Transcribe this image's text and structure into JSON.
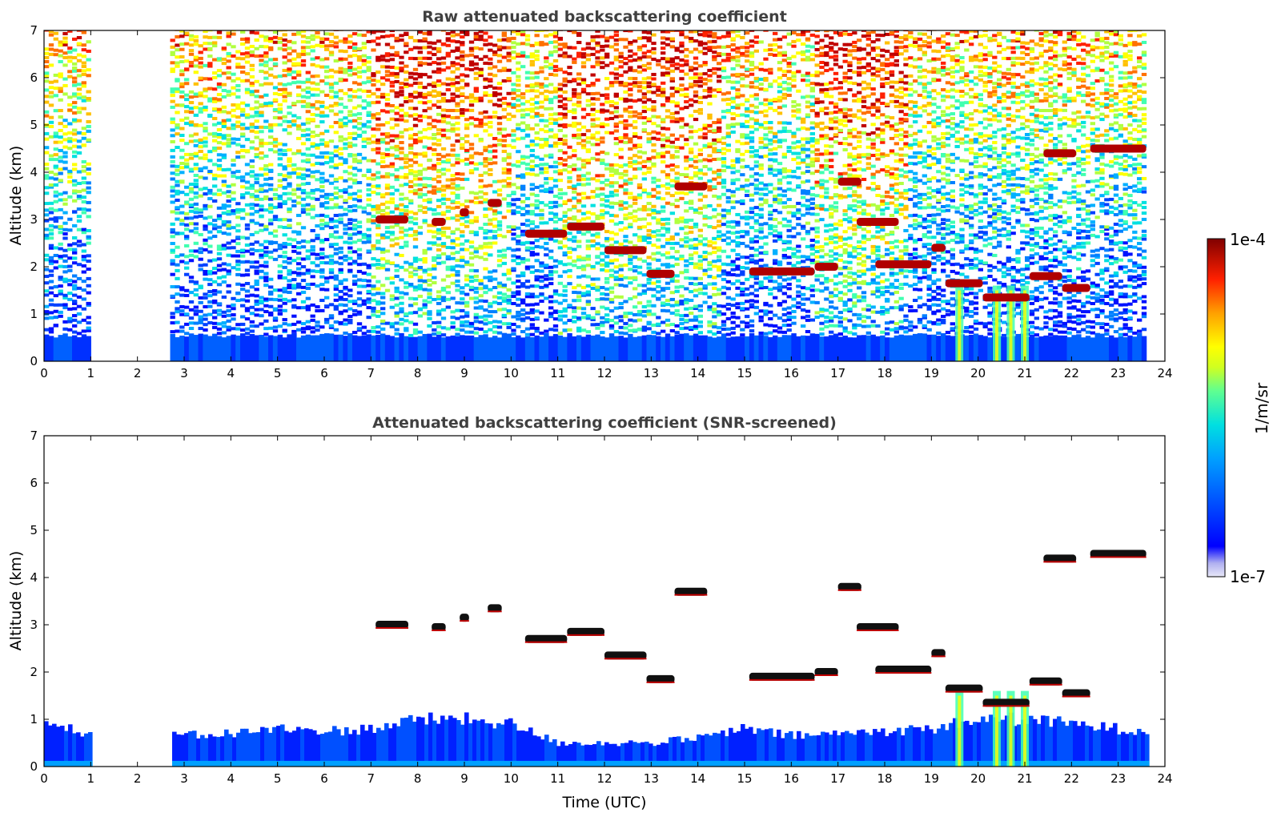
{
  "chart_data": [
    {
      "type": "heatmap",
      "title": "Raw attenuated backscattering coefficient",
      "xlabel": "",
      "ylabel": "Altitude (km)",
      "xlim": [
        0,
        24
      ],
      "ylim": [
        0,
        7
      ],
      "xticks": [
        "0",
        "1",
        "2",
        "3",
        "4",
        "5",
        "6",
        "7",
        "8",
        "9",
        "10",
        "11",
        "12",
        "13",
        "14",
        "15",
        "16",
        "17",
        "18",
        "19",
        "20",
        "21",
        "22",
        "23",
        "24"
      ],
      "yticks": [
        "0",
        "1",
        "2",
        "3",
        "4",
        "5",
        "6",
        "7"
      ],
      "data_gaps_utc": [
        [
          1.0,
          2.75
        ],
        [
          23.65,
          24.0
        ]
      ],
      "cloud_layers": [
        {
          "start": 7.1,
          "end": 7.8,
          "alt_km": 3.0
        },
        {
          "start": 8.3,
          "end": 8.6,
          "alt_km": 2.95
        },
        {
          "start": 8.9,
          "end": 9.1,
          "alt_km": 3.15
        },
        {
          "start": 9.5,
          "end": 9.8,
          "alt_km": 3.35
        },
        {
          "start": 10.3,
          "end": 11.2,
          "alt_km": 2.7
        },
        {
          "start": 11.2,
          "end": 12.0,
          "alt_km": 2.85
        },
        {
          "start": 12.0,
          "end": 12.9,
          "alt_km": 2.35
        },
        {
          "start": 12.9,
          "end": 13.5,
          "alt_km": 1.85
        },
        {
          "start": 13.5,
          "end": 14.2,
          "alt_km": 3.7
        },
        {
          "start": 15.1,
          "end": 16.5,
          "alt_km": 1.9
        },
        {
          "start": 16.5,
          "end": 17.0,
          "alt_km": 2.0
        },
        {
          "start": 17.0,
          "end": 17.5,
          "alt_km": 3.8
        },
        {
          "start": 17.4,
          "end": 18.3,
          "alt_km": 2.95
        },
        {
          "start": 17.8,
          "end": 19.0,
          "alt_km": 2.05
        },
        {
          "start": 19.0,
          "end": 19.3,
          "alt_km": 2.4
        },
        {
          "start": 19.3,
          "end": 20.1,
          "alt_km": 1.65
        },
        {
          "start": 20.1,
          "end": 21.1,
          "alt_km": 1.35
        },
        {
          "start": 21.1,
          "end": 21.8,
          "alt_km": 1.8
        },
        {
          "start": 21.8,
          "end": 22.4,
          "alt_km": 1.55
        },
        {
          "start": 21.4,
          "end": 22.1,
          "alt_km": 4.4
        },
        {
          "start": 22.4,
          "end": 23.6,
          "alt_km": 4.5
        }
      ],
      "precipitation_shafts_utc": [
        19.6,
        20.4,
        20.7,
        21.0
      ]
    },
    {
      "type": "heatmap",
      "title": "Attenuated backscattering coefficient (SNR-screened)",
      "xlabel": "Time (UTC)",
      "ylabel": "Altitude (km)",
      "xlim": [
        0,
        24
      ],
      "ylim": [
        0,
        7
      ],
      "xticks": [
        "0",
        "1",
        "2",
        "3",
        "4",
        "5",
        "6",
        "7",
        "8",
        "9",
        "10",
        "11",
        "12",
        "13",
        "14",
        "15",
        "16",
        "17",
        "18",
        "19",
        "20",
        "21",
        "22",
        "23",
        "24"
      ],
      "yticks": [
        "0",
        "1",
        "2",
        "3",
        "4",
        "5",
        "6",
        "7"
      ],
      "data_gaps_utc": [
        [
          1.0,
          2.75
        ],
        [
          23.65,
          24.0
        ]
      ],
      "boundary_layer_top_km": [
        [
          0,
          0.9
        ],
        [
          1,
          0.7
        ],
        [
          3,
          0.65
        ],
        [
          4,
          0.7
        ],
        [
          5,
          0.8
        ],
        [
          6,
          0.75
        ],
        [
          7,
          0.8
        ],
        [
          8,
          1.0
        ],
        [
          9,
          1.0
        ],
        [
          10,
          0.9
        ],
        [
          11,
          0.5
        ],
        [
          12,
          0.5
        ],
        [
          13,
          0.5
        ],
        [
          14,
          0.6
        ],
        [
          15,
          0.8
        ],
        [
          16,
          0.65
        ],
        [
          17,
          0.7
        ],
        [
          18,
          0.75
        ],
        [
          19,
          0.8
        ],
        [
          20,
          1.0
        ],
        [
          21,
          1.0
        ],
        [
          22,
          0.9
        ],
        [
          23,
          0.8
        ],
        [
          23.65,
          0.75
        ]
      ]
    }
  ],
  "colorbar": {
    "label": "1/m/sr",
    "max_label": "1e-4",
    "min_label": "1e-7",
    "colors": [
      "#e8e8f8",
      "#b0b0f0",
      "#7070f0",
      "#0000ff",
      "#0050ff",
      "#00a0ff",
      "#00e0e0",
      "#40ffb0",
      "#b0ff40",
      "#ffff00",
      "#ffb000",
      "#ff5000",
      "#e00000",
      "#800000"
    ]
  }
}
